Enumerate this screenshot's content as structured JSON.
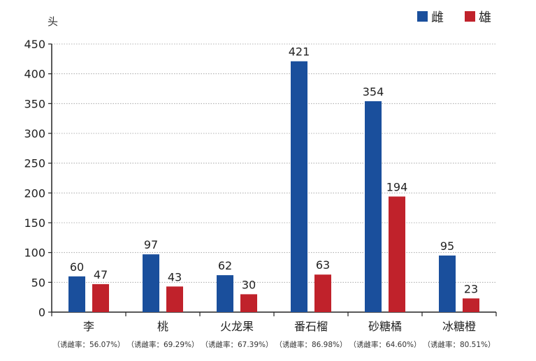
{
  "chart_data": {
    "type": "bar",
    "unit_label": "头",
    "categories": [
      "李",
      "桃",
      "火龙果",
      "番石榴",
      "砂糖橘",
      "冰糖橙"
    ],
    "category_notes": [
      "（诱雌率：56.07%）",
      "（诱雌率：69.29%）",
      "（诱雌率：67.39%）",
      "（诱雌率：86.98%）",
      "（诱雌率：64.60%）",
      "（诱雌率：80.51%）"
    ],
    "series": [
      {
        "name": "雌",
        "color": "#1a4f9c",
        "values": [
          60,
          97,
          62,
          421,
          354,
          95
        ]
      },
      {
        "name": "雄",
        "color": "#c0222b",
        "values": [
          47,
          43,
          30,
          63,
          194,
          23
        ]
      }
    ],
    "ylim": [
      0,
      450
    ],
    "yticks": [
      0,
      50,
      100,
      150,
      200,
      250,
      300,
      350,
      400,
      450
    ],
    "grid": true,
    "legend_position": "top-right"
  }
}
